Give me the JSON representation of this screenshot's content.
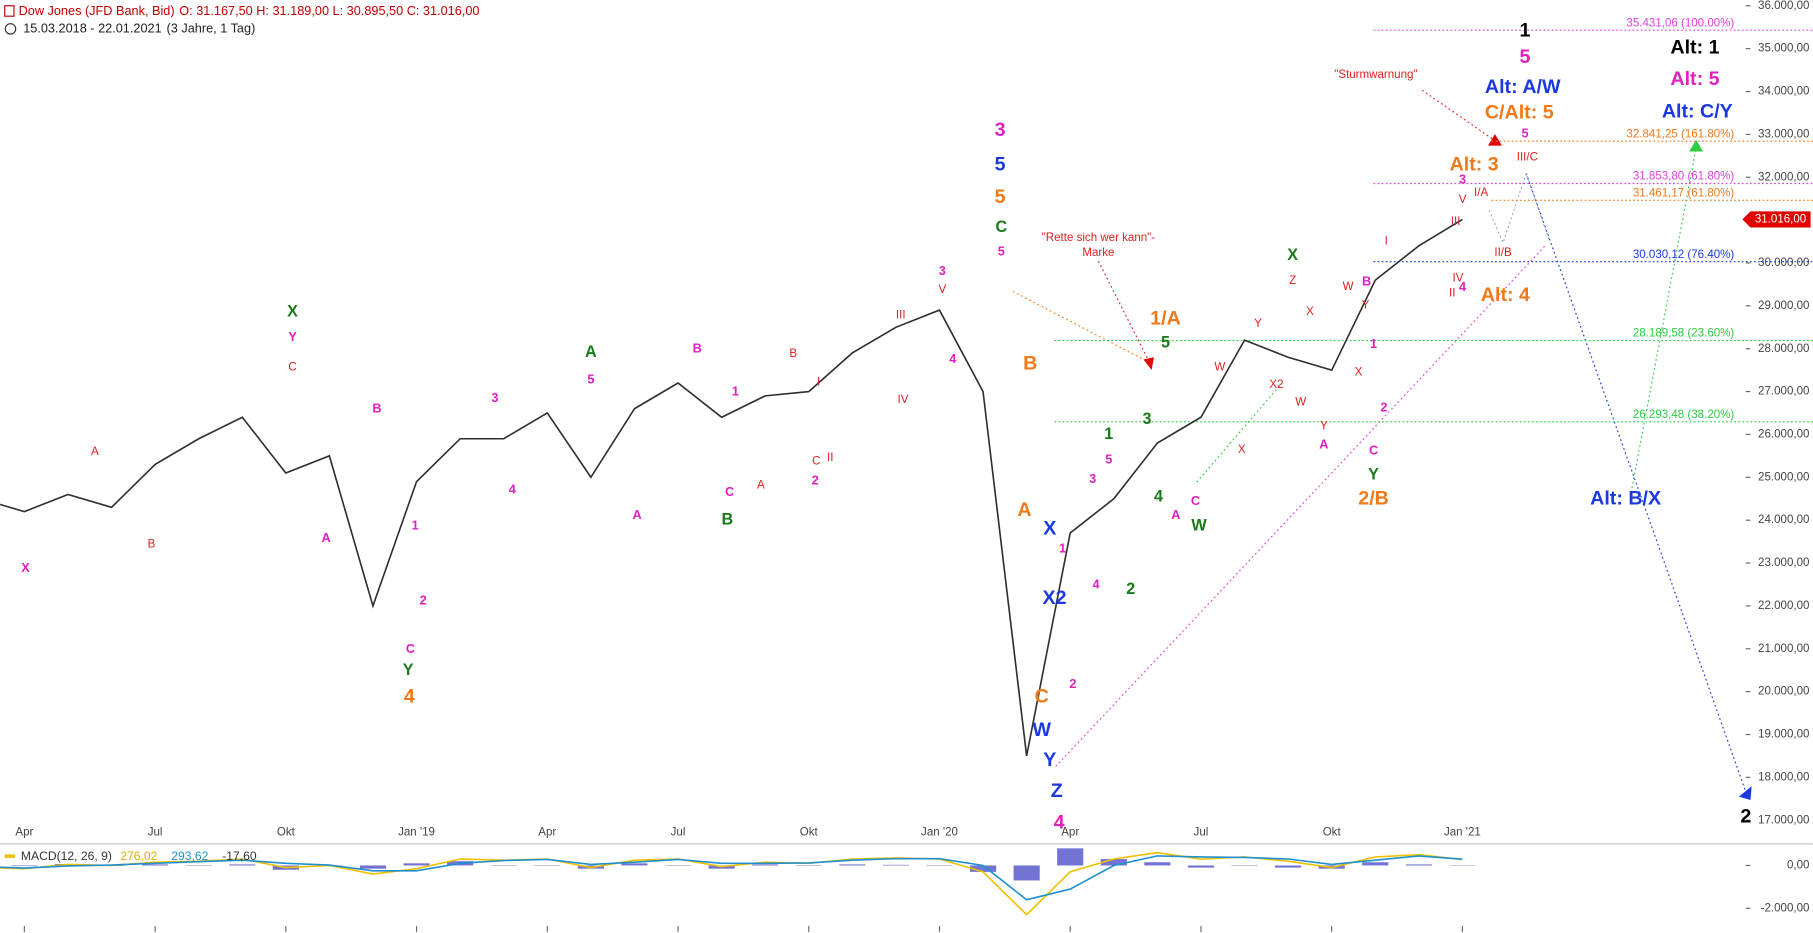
{
  "chart_data": [
    {
      "type": "line",
      "title": "Dow Jones (JFD Bank, Bid)",
      "title_values": "O: 31.167,50  H: 31.189,00  L: 30.895,50  C: 31.016,00",
      "subtitle": "15.03.2018 - 22.01.2021",
      "subtitle_period": "(3 Jahre, 1 Tag)",
      "x": [
        "2018-03",
        "2018-04",
        "2018-05",
        "2018-06",
        "2018-07",
        "2018-08",
        "2018-09",
        "2018-10",
        "2018-11",
        "2018-12",
        "2019-01",
        "2019-02",
        "2019-03",
        "2019-04",
        "2019-05",
        "2019-06",
        "2019-07",
        "2019-08",
        "2019-09",
        "2019-10",
        "2019-11",
        "2019-12",
        "2020-01",
        "2020-02",
        "2020-03",
        "2020-04",
        "2020-05",
        "2020-06",
        "2020-07",
        "2020-08",
        "2020-09",
        "2020-10",
        "2020-11",
        "2020-12",
        "2021-01"
      ],
      "values": [
        24500,
        24200,
        24600,
        24300,
        25300,
        25900,
        26400,
        25100,
        25500,
        22000,
        24900,
        25900,
        25900,
        26500,
        25000,
        26600,
        27200,
        26400,
        26900,
        27000,
        27900,
        28500,
        28900,
        27000,
        18500,
        23700,
        24500,
        25800,
        26400,
        28200,
        27800,
        27500,
        29600,
        30400,
        31016
      ],
      "color": "#2f2f2f",
      "xlim": [
        "2018-03",
        "2021-07"
      ],
      "ylim": [
        16500,
        36000
      ],
      "xticks": [
        {
          "value": "2018-04",
          "label": "Apr"
        },
        {
          "value": "2018-07",
          "label": "Jul"
        },
        {
          "value": "2018-10",
          "label": "Okt"
        },
        {
          "value": "2019-01",
          "label": "Jan '19"
        },
        {
          "value": "2019-04",
          "label": "Apr"
        },
        {
          "value": "2019-07",
          "label": "Jul"
        },
        {
          "value": "2019-10",
          "label": "Okt"
        },
        {
          "value": "2020-01",
          "label": "Jan '20"
        },
        {
          "value": "2020-04",
          "label": "Apr"
        },
        {
          "value": "2020-07",
          "label": "Jul"
        },
        {
          "value": "2020-10",
          "label": "Okt"
        },
        {
          "value": "2021-01",
          "label": "Jan '21"
        }
      ],
      "yticks": [
        {
          "value": 17000,
          "label": "17.000,00"
        },
        {
          "value": 18000,
          "label": "18.000,00"
        },
        {
          "value": 19000,
          "label": "19.000,00"
        },
        {
          "value": 20000,
          "label": "20.000,00"
        },
        {
          "value": 21000,
          "label": "21.000,00"
        },
        {
          "value": 22000,
          "label": "22.000,00"
        },
        {
          "value": 23000,
          "label": "23.000,00"
        },
        {
          "value": 24000,
          "label": "24.000,00"
        },
        {
          "value": 25000,
          "label": "25.000,00"
        },
        {
          "value": 26000,
          "label": "26.000,00"
        },
        {
          "value": 27000,
          "label": "27.000,00"
        },
        {
          "value": 28000,
          "label": "28.000,00"
        },
        {
          "value": 29000,
          "label": "29.000,00"
        },
        {
          "value": 30000,
          "label": "30.000,00"
        },
        {
          "value": 31000,
          "label": "31.000,00"
        },
        {
          "value": 32000,
          "label": "32.000,00"
        },
        {
          "value": 33000,
          "label": "33.000,00"
        },
        {
          "value": 34000,
          "label": "34.000,00"
        },
        {
          "value": 35000,
          "label": "35.000,00"
        },
        {
          "value": 36000,
          "label": "36.000,00"
        }
      ],
      "last_price": {
        "value": 31016,
        "label": "31.016,00",
        "color": "#e00000"
      },
      "levels": [
        {
          "value": 35431.06,
          "label": "35.431,06 (100.00%)",
          "color": "#e040e0"
        },
        {
          "value": 32841.25,
          "label": "32.841,25 (161.80%)",
          "color": "#f07a1a"
        },
        {
          "value": 31853.8,
          "label": "31.853,80 (61.80%)",
          "color": "#e040e0"
        },
        {
          "value": 31461.17,
          "label": "31.461,17 (61.80%)",
          "color": "#f07a1a"
        },
        {
          "value": 30030.12,
          "label": "30.030,12 (76.40%)",
          "color": "#1a3ae0"
        },
        {
          "value": 28189.58,
          "label": "28.189,58 (23.60%)",
          "color": "#2ecc40"
        },
        {
          "value": 26293.48,
          "label": "26.293,48 (38.20%)",
          "color": "#2ecc40"
        }
      ],
      "annotations": [
        {
          "color": "#e020c0",
          "labels": [
            "X",
            "Y",
            "B",
            "A",
            "1",
            "2",
            "C",
            "3",
            "4",
            "5",
            "A",
            "B",
            "1",
            "C",
            "2",
            "3",
            "4",
            "5",
            "1",
            "3",
            "5",
            "4",
            "2",
            "A",
            "C",
            "A",
            "B",
            "1",
            "2",
            "C",
            "4",
            "3",
            "5"
          ]
        },
        {
          "color": "#e020c0",
          "labels": [
            "3",
            "4",
            "5",
            "Alt: 5"
          ]
        },
        {
          "color": "#e02020",
          "labels": [
            "A",
            "B",
            "C",
            "B",
            "I",
            "C",
            "II",
            "A",
            "III",
            "IV",
            "V",
            "W",
            "X",
            "Y",
            "X2",
            "Z",
            "X",
            "W",
            "Y",
            "W",
            "Y",
            "X",
            "I",
            "III",
            "IV",
            "II",
            "V",
            "I/A",
            "II/B",
            "III/C",
            "\"Sturmwarnung\"",
            "\"Rette sich wer kann\"-",
            "Marke"
          ]
        },
        {
          "color": "#1a7a1a",
          "labels": [
            "X",
            "Y",
            "A",
            "B",
            "C",
            "1",
            "3",
            "5",
            "4",
            "2",
            "W",
            "X",
            "Y"
          ]
        },
        {
          "color": "#1a3ae0",
          "labels": [
            "5",
            "X",
            "X2",
            "W",
            "Y",
            "Z",
            "Alt: A/W",
            "Alt: C/Y",
            "Alt: B/X"
          ]
        },
        {
          "color": "#f07a1a",
          "labels": [
            "4",
            "5",
            "B",
            "A",
            "C",
            "1/A",
            "2/B",
            "C/Alt: 5",
            "Alt: 3",
            "Alt: 4"
          ]
        },
        {
          "color": "#000000",
          "labels": [
            "1",
            "Alt: 1",
            "2"
          ]
        }
      ]
    },
    {
      "type": "line",
      "title": "MACD(12, 26, 9)",
      "legend": [
        {
          "text": "276,02",
          "color": "#e0b000"
        },
        {
          "text": "293,62",
          "color": "#2090d0"
        },
        {
          "text": "-17,60",
          "color": "#333333"
        }
      ],
      "x": [
        "2018-03",
        "2018-04",
        "2018-05",
        "2018-06",
        "2018-07",
        "2018-08",
        "2018-09",
        "2018-10",
        "2018-11",
        "2018-12",
        "2019-01",
        "2019-02",
        "2019-03",
        "2019-04",
        "2019-05",
        "2019-06",
        "2019-07",
        "2019-08",
        "2019-09",
        "2019-10",
        "2019-11",
        "2019-12",
        "2020-01",
        "2020-02",
        "2020-03",
        "2020-04",
        "2020-05",
        "2020-06",
        "2020-07",
        "2020-08",
        "2020-09",
        "2020-10",
        "2020-11",
        "2020-12",
        "2021-01"
      ],
      "series": [
        {
          "color": "#f0c000",
          "values": [
            -100,
            -150,
            50,
            0,
            150,
            200,
            300,
            -100,
            0,
            -400,
            -150,
            300,
            250,
            300,
            -100,
            250,
            300,
            -50,
            150,
            100,
            300,
            350,
            300,
            -300,
            -2300,
            -300,
            300,
            600,
            300,
            400,
            200,
            -100,
            400,
            500,
            276.02
          ]
        },
        {
          "color": "#2090d0",
          "values": [
            -50,
            -120,
            -20,
            20,
            100,
            180,
            250,
            100,
            20,
            -250,
            -250,
            100,
            230,
            280,
            50,
            150,
            280,
            100,
            100,
            120,
            250,
            320,
            320,
            0,
            -1600,
            -1100,
            0,
            450,
            400,
            380,
            300,
            50,
            250,
            450,
            293.62
          ]
        }
      ],
      "histogram": {
        "color": "#5050c8",
        "values": [
          -50,
          -30,
          70,
          -20,
          50,
          20,
          50,
          -200,
          -20,
          -150,
          100,
          200,
          20,
          20,
          -150,
          100,
          20,
          -150,
          50,
          -20,
          50,
          30,
          -20,
          -300,
          -700,
          800,
          300,
          150,
          -100,
          20,
          -100,
          -150,
          150,
          50,
          -17.6
        ]
      },
      "xlim": [
        "2018-03",
        "2021-07"
      ],
      "ylim": [
        -3100,
        950
      ],
      "yticks": [
        {
          "value": 0,
          "label": "0,00"
        },
        {
          "value": -2000,
          "label": "-2.000,00"
        }
      ]
    }
  ]
}
